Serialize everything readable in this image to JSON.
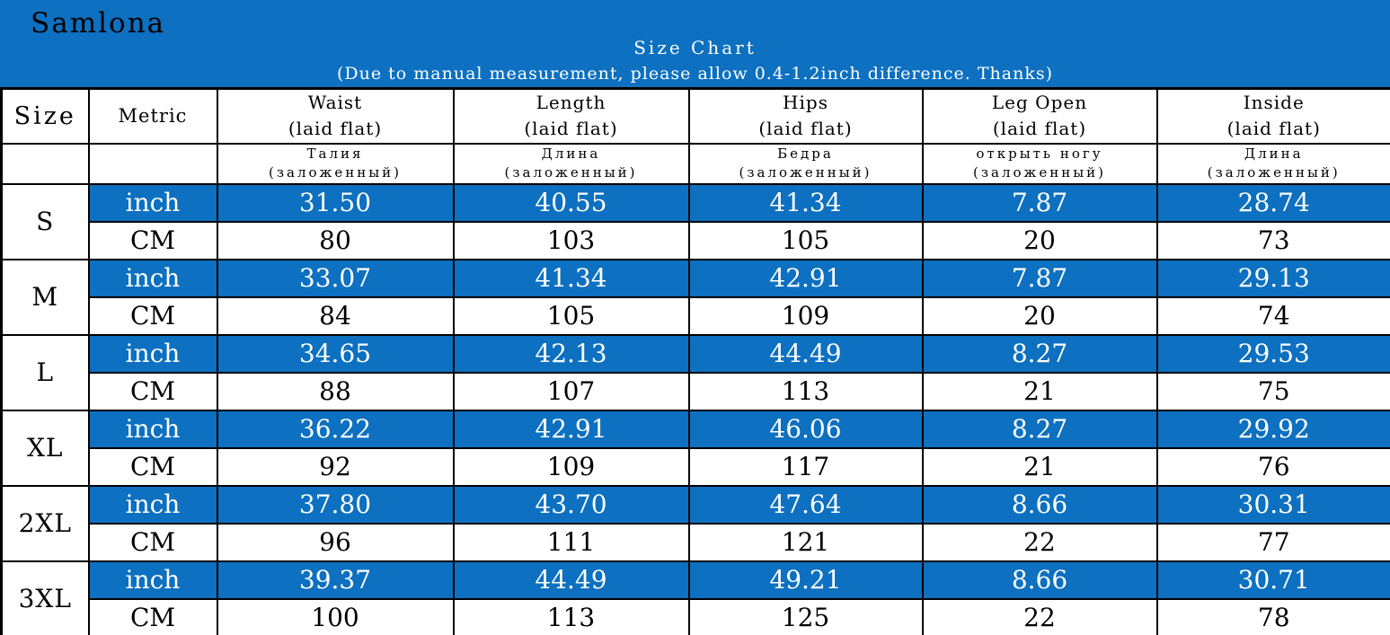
{
  "header": {
    "brand": "Samlona",
    "title": "Size Chart",
    "note": "(Due to manual measurement, please allow 0.4-1.2inch difference. Thanks)"
  },
  "colors": {
    "theme_blue": "#0d70c0",
    "text_on_blue": "#ffffff",
    "text_on_white": "#000000",
    "border": "#000000"
  },
  "table": {
    "metric_inch_label": "inch",
    "metric_cm_label": "CM",
    "columns": [
      {
        "label_en": "Size",
        "sub_en": "",
        "label_ru": "",
        "sub_ru": ""
      },
      {
        "label_en": "Metric",
        "sub_en": "",
        "label_ru": "",
        "sub_ru": ""
      },
      {
        "label_en": "Waist",
        "sub_en": "(laid flat)",
        "label_ru": "Талия",
        "sub_ru": "(заложенный)"
      },
      {
        "label_en": "Length",
        "sub_en": "(laid flat)",
        "label_ru": "Длина",
        "sub_ru": "(заложенный)"
      },
      {
        "label_en": "Hips",
        "sub_en": "(laid flat)",
        "label_ru": "Бедра",
        "sub_ru": "(заложенный)"
      },
      {
        "label_en": "Leg Open",
        "sub_en": "(laid flat)",
        "label_ru": "открыть ногу",
        "sub_ru": "(заложенный)"
      },
      {
        "label_en": "Inside",
        "sub_en": "(laid flat)",
        "label_ru": "Длина",
        "sub_ru": "(заложенный)"
      }
    ],
    "rows": [
      {
        "size": "S",
        "inch": [
          "31.50",
          "40.55",
          "41.34",
          "7.87",
          "28.74"
        ],
        "cm": [
          "80",
          "103",
          "105",
          "20",
          "73"
        ]
      },
      {
        "size": "M",
        "inch": [
          "33.07",
          "41.34",
          "42.91",
          "7.87",
          "29.13"
        ],
        "cm": [
          "84",
          "105",
          "109",
          "20",
          "74"
        ]
      },
      {
        "size": "L",
        "inch": [
          "34.65",
          "42.13",
          "44.49",
          "8.27",
          "29.53"
        ],
        "cm": [
          "88",
          "107",
          "113",
          "21",
          "75"
        ]
      },
      {
        "size": "XL",
        "inch": [
          "36.22",
          "42.91",
          "46.06",
          "8.27",
          "29.92"
        ],
        "cm": [
          "92",
          "109",
          "117",
          "21",
          "76"
        ]
      },
      {
        "size": "2XL",
        "inch": [
          "37.80",
          "43.70",
          "47.64",
          "8.66",
          "30.31"
        ],
        "cm": [
          "96",
          "111",
          "121",
          "22",
          "77"
        ]
      },
      {
        "size": "3XL",
        "inch": [
          "39.37",
          "44.49",
          "49.21",
          "8.66",
          "30.71"
        ],
        "cm": [
          "100",
          "113",
          "125",
          "22",
          "78"
        ]
      }
    ]
  },
  "chart_data": {
    "type": "table",
    "title": "Size Chart",
    "subtitle": "(Due to manual measurement, please allow 0.4-1.2inch difference. Thanks)",
    "columns_en": [
      "Size",
      "Metric",
      "Waist (laid flat)",
      "Length (laid flat)",
      "Hips (laid flat)",
      "Leg Open (laid flat)",
      "Inside (laid flat)"
    ],
    "columns_ru": [
      "",
      "",
      "Талия (заложенный)",
      "Длина (заложенный)",
      "Бедра (заложенный)",
      "открыть ногу (заложенный)",
      "Длина (заложенный)"
    ],
    "rows": [
      {
        "size": "S",
        "unit": "inch",
        "waist": 31.5,
        "length": 40.55,
        "hips": 41.34,
        "leg_open": 7.87,
        "inside": 28.74
      },
      {
        "size": "S",
        "unit": "CM",
        "waist": 80,
        "length": 103,
        "hips": 105,
        "leg_open": 20,
        "inside": 73
      },
      {
        "size": "M",
        "unit": "inch",
        "waist": 33.07,
        "length": 41.34,
        "hips": 42.91,
        "leg_open": 7.87,
        "inside": 29.13
      },
      {
        "size": "M",
        "unit": "CM",
        "waist": 84,
        "length": 105,
        "hips": 109,
        "leg_open": 20,
        "inside": 74
      },
      {
        "size": "L",
        "unit": "inch",
        "waist": 34.65,
        "length": 42.13,
        "hips": 44.49,
        "leg_open": 8.27,
        "inside": 29.53
      },
      {
        "size": "L",
        "unit": "CM",
        "waist": 88,
        "length": 107,
        "hips": 113,
        "leg_open": 21,
        "inside": 75
      },
      {
        "size": "XL",
        "unit": "inch",
        "waist": 36.22,
        "length": 42.91,
        "hips": 46.06,
        "leg_open": 8.27,
        "inside": 29.92
      },
      {
        "size": "XL",
        "unit": "CM",
        "waist": 92,
        "length": 109,
        "hips": 117,
        "leg_open": 21,
        "inside": 76
      },
      {
        "size": "2XL",
        "unit": "inch",
        "waist": 37.8,
        "length": 43.7,
        "hips": 47.64,
        "leg_open": 8.66,
        "inside": 30.31
      },
      {
        "size": "2XL",
        "unit": "CM",
        "waist": 96,
        "length": 111,
        "hips": 121,
        "leg_open": 22,
        "inside": 77
      },
      {
        "size": "3XL",
        "unit": "inch",
        "waist": 39.37,
        "length": 44.49,
        "hips": 49.21,
        "leg_open": 8.66,
        "inside": 30.71
      },
      {
        "size": "3XL",
        "unit": "CM",
        "waist": 100,
        "length": 113,
        "hips": 125,
        "leg_open": 22,
        "inside": 78
      }
    ]
  }
}
